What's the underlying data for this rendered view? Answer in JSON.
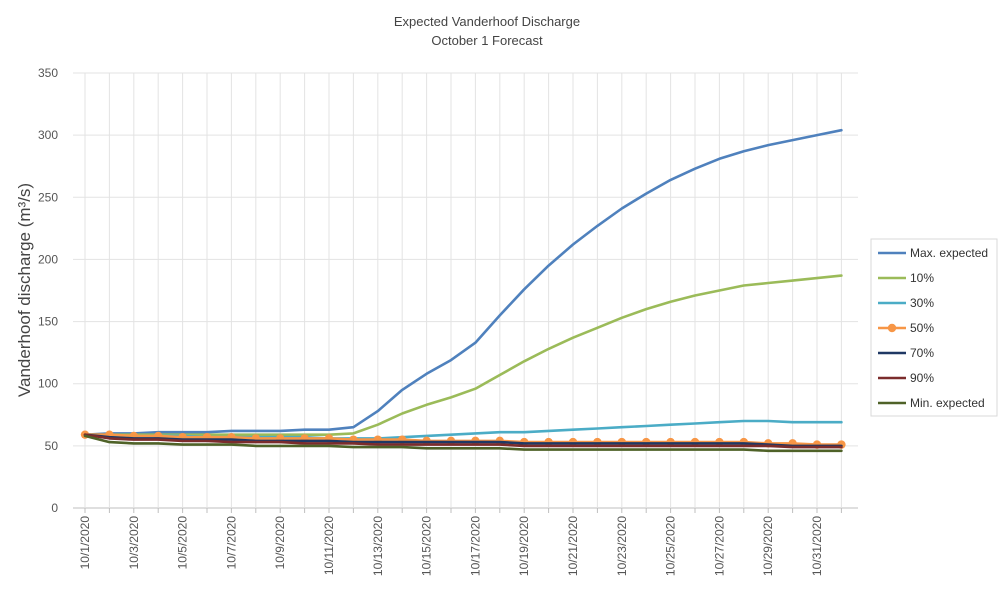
{
  "chart_data": {
    "type": "line",
    "title": "Expected Vanderhoof Discharge",
    "subtitle": "October 1 Forecast",
    "xlabel": "",
    "ylabel": "Vanderhoof discharge (m³/s)",
    "ylim": [
      0,
      350
    ],
    "yticks": [
      0,
      50,
      100,
      150,
      200,
      250,
      300,
      350
    ],
    "grid": true,
    "legend_position": "right",
    "x": [
      "10/1/2020",
      "10/2/2020",
      "10/3/2020",
      "10/4/2020",
      "10/5/2020",
      "10/6/2020",
      "10/7/2020",
      "10/8/2020",
      "10/9/2020",
      "10/10/2020",
      "10/11/2020",
      "10/12/2020",
      "10/13/2020",
      "10/14/2020",
      "10/15/2020",
      "10/16/2020",
      "10/17/2020",
      "10/18/2020",
      "10/19/2020",
      "10/20/2020",
      "10/21/2020",
      "10/22/2020",
      "10/23/2020",
      "10/24/2020",
      "10/25/2020",
      "10/26/2020",
      "10/27/2020",
      "10/28/2020",
      "10/29/2020",
      "10/30/2020",
      "10/31/2020",
      "11/1/2020"
    ],
    "xtick_labels": [
      "10/1/2020",
      "10/3/2020",
      "10/5/2020",
      "10/7/2020",
      "10/9/2020",
      "10/11/2020",
      "10/13/2020",
      "10/15/2020",
      "10/17/2020",
      "10/19/2020",
      "10/21/2020",
      "10/23/2020",
      "10/25/2020",
      "10/27/2020",
      "10/29/2020",
      "10/31/2020"
    ],
    "series": [
      {
        "name": "Max. expected",
        "color": "#4f81bd",
        "marker": "none",
        "values": [
          59,
          60,
          60,
          61,
          61,
          61,
          62,
          62,
          62,
          63,
          63,
          65,
          78,
          95,
          108,
          119,
          133,
          155,
          176,
          195,
          212,
          227,
          241,
          253,
          264,
          273,
          281,
          287,
          292,
          296,
          300,
          304
        ]
      },
      {
        "name": "10%",
        "color": "#9bbb59",
        "marker": "none",
        "values": [
          59,
          59,
          59,
          59,
          59,
          59,
          59,
          59,
          59,
          59,
          59,
          60,
          67,
          76,
          83,
          89,
          96,
          107,
          118,
          128,
          137,
          145,
          153,
          160,
          166,
          171,
          175,
          179,
          181,
          183,
          185,
          187
        ]
      },
      {
        "name": "30%",
        "color": "#4bacc6",
        "marker": "none",
        "values": [
          59,
          58,
          58,
          58,
          58,
          57,
          57,
          57,
          57,
          57,
          56,
          56,
          56,
          57,
          58,
          59,
          60,
          61,
          61,
          62,
          63,
          64,
          65,
          66,
          67,
          68,
          69,
          70,
          70,
          69,
          69,
          69
        ]
      },
      {
        "name": "50%",
        "color": "#f79646",
        "marker": "circle",
        "values": [
          59,
          59,
          58,
          58,
          57,
          57,
          57,
          56,
          56,
          56,
          56,
          55,
          55,
          55,
          54,
          54,
          54,
          54,
          53,
          53,
          53,
          53,
          53,
          53,
          53,
          53,
          53,
          53,
          52,
          52,
          51,
          51
        ]
      },
      {
        "name": "70%",
        "color": "#1f3864",
        "marker": "none",
        "values": [
          59,
          57,
          56,
          56,
          55,
          55,
          55,
          54,
          54,
          54,
          54,
          53,
          53,
          53,
          53,
          53,
          53,
          53,
          52,
          52,
          52,
          52,
          52,
          52,
          52,
          52,
          52,
          52,
          51,
          50,
          50,
          50
        ]
      },
      {
        "name": "90%",
        "color": "#7b2c2c",
        "marker": "none",
        "values": [
          59,
          56,
          55,
          55,
          54,
          54,
          53,
          53,
          53,
          52,
          52,
          52,
          51,
          51,
          51,
          51,
          51,
          51,
          50,
          50,
          50,
          50,
          50,
          50,
          50,
          50,
          50,
          50,
          50,
          49,
          49,
          49
        ]
      },
      {
        "name": "Min. expected",
        "color": "#4f6228",
        "marker": "none",
        "values": [
          58,
          53,
          52,
          52,
          51,
          51,
          51,
          50,
          50,
          50,
          50,
          49,
          49,
          49,
          48,
          48,
          48,
          48,
          47,
          47,
          47,
          47,
          47,
          47,
          47,
          47,
          47,
          47,
          46,
          46,
          46,
          46
        ]
      }
    ]
  }
}
